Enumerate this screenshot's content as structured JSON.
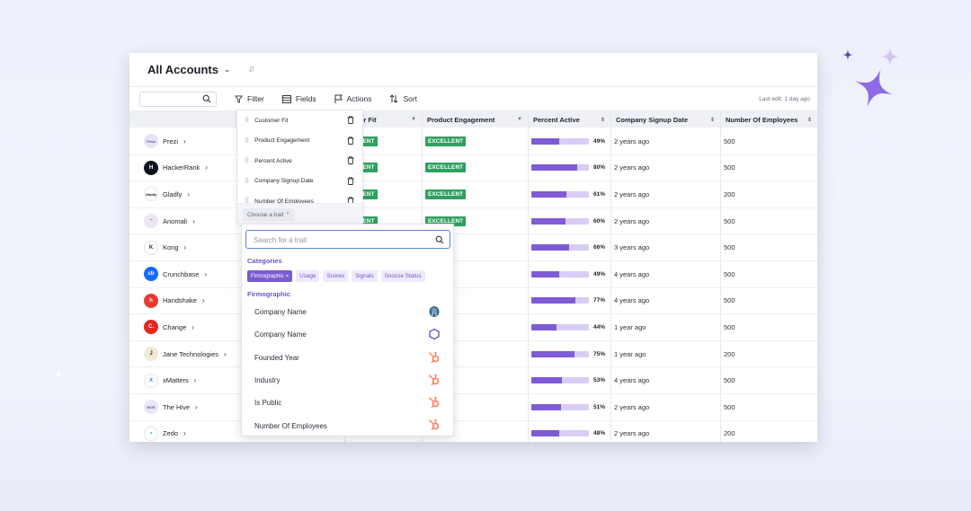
{
  "header": {
    "title": "All Accounts",
    "caret": "⌄",
    "pin": "⇵"
  },
  "toolbar": {
    "search_placeholder": "",
    "filter": "Filter",
    "fields": "Fields",
    "actions": "Actions",
    "sort": "Sort",
    "last_edit": "Last edit: 1 day ago"
  },
  "columns": [
    "omer Fit",
    "Product Engagement",
    "Percent Active",
    "Company Signup Date",
    "Number Of Employees"
  ],
  "rows": [
    {
      "name": "Prezi",
      "logo_text": "Prezi",
      "logo_bg": "#e8e3f7",
      "logo_fg": "#5b4bbd",
      "fit": "ELLENT",
      "eng": "EXCELLENT",
      "pct_value": 49,
      "pct": "49%",
      "date": "2 years ago",
      "emp": "500"
    },
    {
      "name": "HackerRank",
      "logo_text": "H",
      "logo_bg": "#0e141e",
      "logo_fg": "#ffffff",
      "fit": "ELLENT",
      "eng": "EXCELLENT",
      "pct_value": 80,
      "pct": "80%",
      "date": "2 years ago",
      "emp": "500"
    },
    {
      "name": "Gladly",
      "logo_text": "Gladly",
      "logo_bg": "#ffffff",
      "logo_fg": "#1b1b1b",
      "fit": "ELLENT",
      "eng": "EXCELLENT",
      "pct_value": 61,
      "pct": "61%",
      "date": "2 years ago",
      "emp": "200"
    },
    {
      "name": "Anomali",
      "logo_text": "~",
      "logo_bg": "#efe6f4",
      "logo_fg": "#8a5fa8",
      "fit": "ELLENT",
      "eng": "EXCELLENT",
      "pct_value": 60,
      "pct": "60%",
      "date": "2 years ago",
      "emp": "500"
    },
    {
      "name": "Kong",
      "logo_text": "K",
      "logo_bg": "#ffffff",
      "logo_fg": "#1a2d4f",
      "fit": "",
      "eng": "",
      "pct_value": 66,
      "pct": "66%",
      "date": "3 years ago",
      "emp": "500"
    },
    {
      "name": "Crunchbase",
      "logo_text": "cb",
      "logo_bg": "#146aff",
      "logo_fg": "#ffffff",
      "fit": "",
      "eng": "",
      "pct_value": 49,
      "pct": "49%",
      "date": "4 years ago",
      "emp": "500"
    },
    {
      "name": "Handshake",
      "logo_text": "h",
      "logo_bg": "#e63b2e",
      "logo_fg": "#ffffff",
      "fit": "",
      "eng": "",
      "pct_value": 77,
      "pct": "77%",
      "date": "4 years ago",
      "emp": "500"
    },
    {
      "name": "Change",
      "logo_text": "C.",
      "logo_bg": "#e8261d",
      "logo_fg": "#ffffff",
      "fit": "",
      "eng": "",
      "pct_value": 44,
      "pct": "44%",
      "date": "1 year ago",
      "emp": "500"
    },
    {
      "name": "Jane Technologies",
      "logo_text": "J",
      "logo_bg": "#f3e9d6",
      "logo_fg": "#3a2f20",
      "fit": "",
      "eng": "",
      "pct_value": 75,
      "pct": "75%",
      "date": "1 year ago",
      "emp": "200"
    },
    {
      "name": "xMatters",
      "logo_text": "X",
      "logo_bg": "#ffffff",
      "logo_fg": "#2a8fd6",
      "fit": "",
      "eng": "",
      "pct_value": 53,
      "pct": "53%",
      "date": "4 years ago",
      "emp": "500"
    },
    {
      "name": "The Hive",
      "logo_text": "HIVE",
      "logo_bg": "#e8e6f7",
      "logo_fg": "#5a55b8",
      "fit": "",
      "eng": "",
      "pct_value": 51,
      "pct": "51%",
      "date": "2 years ago",
      "emp": "500"
    },
    {
      "name": "Zedo",
      "logo_text": "•",
      "logo_bg": "#ffffff",
      "logo_fg": "#23a7c9",
      "fit": "",
      "eng": "",
      "pct_value": 48,
      "pct": "48%",
      "date": "2 years ago",
      "emp": "200"
    }
  ],
  "fields_panel": {
    "items": [
      "Customer Fit",
      "Product Engagement",
      "Percent Active",
      "Company Signup Date",
      "Number Of Employees"
    ],
    "choose_trait": "Choose a trait ⌃"
  },
  "trait_panel": {
    "search_placeholder": "Search for a trait",
    "categories_label": "Categories",
    "chips": [
      "Firmographic ×",
      "Usage",
      "Scores",
      "Signals",
      "Snooze Status"
    ],
    "section_label": "Firmographic",
    "items": [
      {
        "label": "Company Name",
        "source_icon": "postgres-icon"
      },
      {
        "label": "Company Name",
        "source_icon": "hexagon-icon"
      },
      {
        "label": "Founded Year",
        "source_icon": "hubspot-icon"
      },
      {
        "label": "Industry",
        "source_icon": "hubspot-icon"
      },
      {
        "label": "Is Public",
        "source_icon": "hubspot-icon"
      },
      {
        "label": "Number Of Employees",
        "source_icon": "hubspot-icon"
      }
    ]
  },
  "colors": {
    "accent": "#7a5cd0",
    "excellent": "#2ea05f",
    "bar_fill": "#7f5bd5",
    "bar_track": "#d9cdf5",
    "hubspot": "#ff7a59"
  }
}
